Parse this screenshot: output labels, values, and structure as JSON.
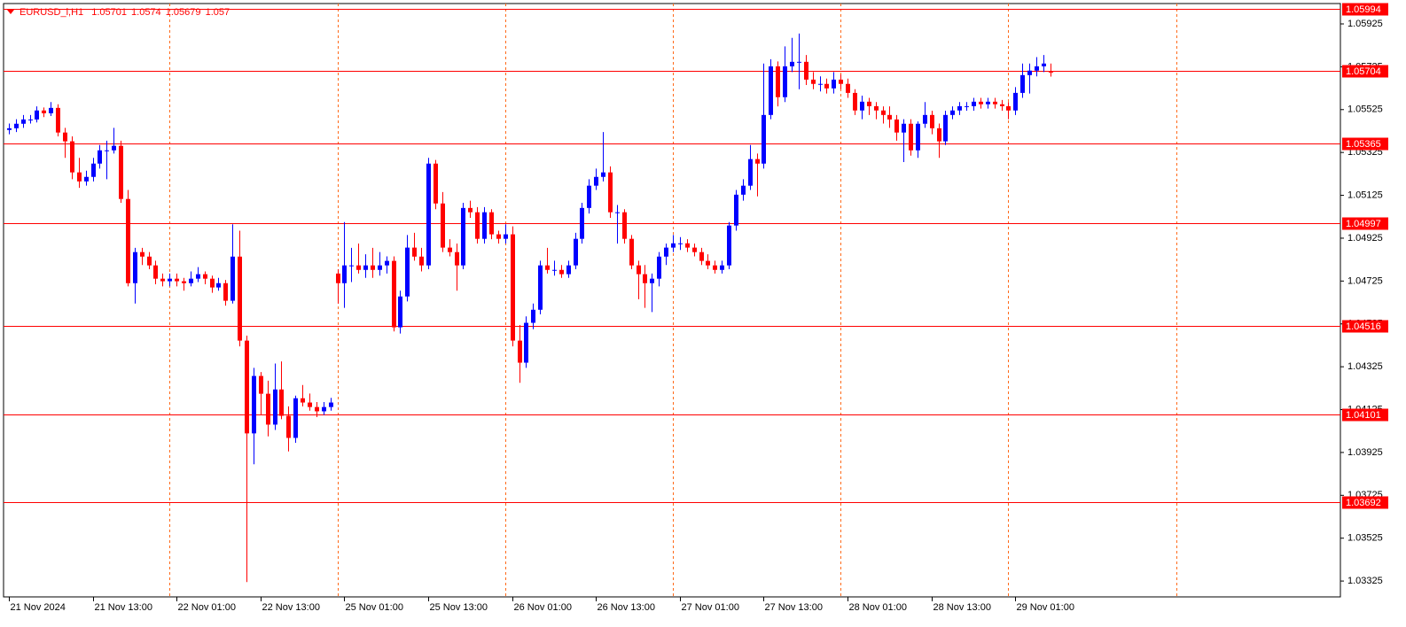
{
  "chart_data": {
    "type": "candlestick",
    "symbol": "EURUSD_i,H1",
    "up_color": "#0000ff",
    "down_color": "#ff0000",
    "level_color": "#ff0000",
    "ylim": [
      1.03251,
      1.0602
    ],
    "yticks": [
      1.05925,
      1.05725,
      1.05525,
      1.05325,
      1.05125,
      1.04925,
      1.04725,
      1.04525,
      1.04325,
      1.04125,
      1.03925,
      1.03725,
      1.03525,
      1.03325
    ],
    "levels": [
      1.05994,
      1.05704,
      1.05365,
      1.04997,
      1.04516,
      1.04101,
      1.03692
    ],
    "xlim": [
      -0.75,
      190.5
    ],
    "xticks": [
      {
        "value": 0,
        "label": "21 Nov 2024"
      },
      {
        "value": 12,
        "label": "21 Nov 13:00"
      },
      {
        "value": 24,
        "label": "22 Nov 01:00"
      },
      {
        "value": 36,
        "label": "22 Nov 13:00"
      },
      {
        "value": 48,
        "label": "25 Nov 01:00"
      },
      {
        "value": 60,
        "label": "25 Nov 13:00"
      },
      {
        "value": 72,
        "label": "26 Nov 01:00"
      },
      {
        "value": 84,
        "label": "26 Nov 13:00"
      },
      {
        "value": 96,
        "label": "27 Nov 01:00"
      },
      {
        "value": 108,
        "label": "27 Nov 13:00"
      },
      {
        "value": 120,
        "label": "28 Nov 01:00"
      },
      {
        "value": 132,
        "label": "28 Nov 13:00"
      },
      {
        "value": 144,
        "label": "29 Nov 01:00"
      }
    ],
    "xgrid": [
      23,
      47,
      71,
      95,
      119,
      143,
      167
    ],
    "candles": [
      [
        1.0543,
        1.0546,
        1.0541,
        1.05438
      ],
      [
        1.05438,
        1.0548,
        1.0542,
        1.05459
      ],
      [
        1.05459,
        1.055,
        1.0544,
        1.05479
      ],
      [
        1.05479,
        1.055,
        1.0546,
        1.05479
      ],
      [
        1.05479,
        1.0554,
        1.05465,
        1.05521
      ],
      [
        1.05521,
        1.05535,
        1.0549,
        1.05508
      ],
      [
        1.05508,
        1.0556,
        1.05495,
        1.05533
      ],
      [
        1.05533,
        1.0555,
        1.054,
        1.05418
      ],
      [
        1.05418,
        1.0544,
        1.053,
        1.05377
      ],
      [
        1.05377,
        1.054,
        1.052,
        1.05232
      ],
      [
        1.05232,
        1.053,
        1.0516,
        1.0519
      ],
      [
        1.0519,
        1.0524,
        1.0517,
        1.05211
      ],
      [
        1.05211,
        1.053,
        1.0519,
        1.05273
      ],
      [
        1.05273,
        1.0536,
        1.0525,
        1.05335
      ],
      [
        1.05335,
        1.0538,
        1.052,
        1.05335
      ],
      [
        1.05335,
        1.0544,
        1.0532,
        1.05356
      ],
      [
        1.05356,
        1.0538,
        1.0509,
        1.05108
      ],
      [
        1.05108,
        1.0515,
        1.047,
        1.04715
      ],
      [
        1.04715,
        1.0488,
        1.0462,
        1.0486
      ],
      [
        1.0486,
        1.0488,
        1.048,
        1.04839
      ],
      [
        1.04839,
        1.0486,
        1.0478,
        1.04798
      ],
      [
        1.04798,
        1.0482,
        1.0471,
        1.04736
      ],
      [
        1.04736,
        1.0476,
        1.047,
        1.04724
      ],
      [
        1.04724,
        1.0476,
        1.047,
        1.04736
      ],
      [
        1.04736,
        1.0476,
        1.047,
        1.04724
      ],
      [
        1.04724,
        1.0474,
        1.0468,
        1.04715
      ],
      [
        1.04715,
        1.0477,
        1.047,
        1.04736
      ],
      [
        1.04736,
        1.0479,
        1.0472,
        1.04757
      ],
      [
        1.04757,
        1.0477,
        1.0471,
        1.04736
      ],
      [
        1.04736,
        1.0475,
        1.0467,
        1.04695
      ],
      [
        1.04695,
        1.0474,
        1.0468,
        1.04715
      ],
      [
        1.04715,
        1.0473,
        1.0461,
        1.04633
      ],
      [
        1.04633,
        1.0499,
        1.0462,
        1.04839
      ],
      [
        1.04839,
        1.0496,
        1.0442,
        1.04447
      ],
      [
        1.04447,
        1.0447,
        1.0332,
        1.04014
      ],
      [
        1.04014,
        1.0432,
        1.0387,
        1.04282
      ],
      [
        1.04282,
        1.043,
        1.041,
        1.04199
      ],
      [
        1.04199,
        1.0426,
        1.04,
        1.04055
      ],
      [
        1.04055,
        1.0434,
        1.0403,
        1.04219
      ],
      [
        1.04219,
        1.0435,
        1.0408,
        1.04096
      ],
      [
        1.04096,
        1.0414,
        1.0393,
        1.03993
      ],
      [
        1.03993,
        1.0419,
        1.0397,
        1.04178
      ],
      [
        1.04178,
        1.0424,
        1.0414,
        1.04158
      ],
      [
        1.04158,
        1.042,
        1.0412,
        1.04137
      ],
      [
        1.04137,
        1.0416,
        1.0409,
        1.04117
      ],
      [
        1.04117,
        1.0416,
        1.041,
        1.04137
      ],
      [
        1.04137,
        1.0418,
        1.0412,
        1.04158
      ],
      [
        1.0476,
        1.0478,
        1.0462,
        1.04715
      ],
      [
        1.04715,
        1.05,
        1.046,
        1.04798
      ],
      [
        1.04798,
        1.0488,
        1.0472,
        1.04798
      ],
      [
        1.04798,
        1.049,
        1.0476,
        1.04777
      ],
      [
        1.04777,
        1.0485,
        1.0474,
        1.04798
      ],
      [
        1.04798,
        1.0488,
        1.0474,
        1.04777
      ],
      [
        1.04777,
        1.0486,
        1.0475,
        1.04798
      ],
      [
        1.04798,
        1.0484,
        1.0476,
        1.04819
      ],
      [
        1.04819,
        1.0484,
        1.0449,
        1.04509
      ],
      [
        1.04509,
        1.0468,
        1.0448,
        1.04653
      ],
      [
        1.04653,
        1.0494,
        1.0463,
        1.04881
      ],
      [
        1.04881,
        1.0495,
        1.0482,
        1.04839
      ],
      [
        1.04839,
        1.0488,
        1.0477,
        1.04798
      ],
      [
        1.04798,
        1.053,
        1.0478,
        1.05273
      ],
      [
        1.05273,
        1.0529,
        1.0506,
        1.05087
      ],
      [
        1.05087,
        1.0514,
        1.0486,
        1.04881
      ],
      [
        1.04881,
        1.0492,
        1.0484,
        1.0486
      ],
      [
        1.0486,
        1.049,
        1.0468,
        1.04798
      ],
      [
        1.04798,
        1.0509,
        1.0478,
        1.05066
      ],
      [
        1.05066,
        1.051,
        1.0502,
        1.05046
      ],
      [
        1.05046,
        1.0507,
        1.049,
        1.04922
      ],
      [
        1.04922,
        1.0507,
        1.049,
        1.05046
      ],
      [
        1.05046,
        1.0506,
        1.0492,
        1.04943
      ],
      [
        1.04943,
        1.0496,
        1.049,
        1.04922
      ],
      [
        1.04922,
        1.0499,
        1.049,
        1.04943
      ],
      [
        1.04943,
        1.0498,
        1.0442,
        1.04447
      ],
      [
        1.04447,
        1.0452,
        1.0425,
        1.04344
      ],
      [
        1.04344,
        1.0456,
        1.0432,
        1.0453
      ],
      [
        1.0453,
        1.0462,
        1.045,
        1.04591
      ],
      [
        1.04591,
        1.0482,
        1.0457,
        1.04798
      ],
      [
        1.04798,
        1.0488,
        1.0476,
        1.04777
      ],
      [
        1.04777,
        1.0482,
        1.0475,
        1.04777
      ],
      [
        1.04777,
        1.048,
        1.0474,
        1.04757
      ],
      [
        1.04757,
        1.0482,
        1.0474,
        1.04798
      ],
      [
        1.04798,
        1.0495,
        1.0478,
        1.04922
      ],
      [
        1.04922,
        1.0509,
        1.049,
        1.05066
      ],
      [
        1.05066,
        1.052,
        1.0504,
        1.0517
      ],
      [
        1.0517,
        1.0525,
        1.0515,
        1.05211
      ],
      [
        1.05211,
        1.0542,
        1.0519,
        1.05232
      ],
      [
        1.05232,
        1.0526,
        1.0502,
        1.05046
      ],
      [
        1.05046,
        1.0508,
        1.049,
        1.05046
      ],
      [
        1.05046,
        1.0506,
        1.049,
        1.04922
      ],
      [
        1.04922,
        1.0494,
        1.0478,
        1.04798
      ],
      [
        1.04798,
        1.0482,
        1.0464,
        1.04757
      ],
      [
        1.04757,
        1.048,
        1.046,
        1.04715
      ],
      [
        1.04715,
        1.0476,
        1.0458,
        1.04736
      ],
      [
        1.04736,
        1.0486,
        1.047,
        1.04839
      ],
      [
        1.04839,
        1.049,
        1.048,
        1.04881
      ],
      [
        1.04881,
        1.0494,
        1.0486,
        1.04901
      ],
      [
        1.04901,
        1.0493,
        1.0487,
        1.04901
      ],
      [
        1.04901,
        1.0492,
        1.0486,
        1.04881
      ],
      [
        1.04881,
        1.049,
        1.0484,
        1.0486
      ],
      [
        1.0486,
        1.0488,
        1.048,
        1.04819
      ],
      [
        1.04819,
        1.0485,
        1.0478,
        1.04798
      ],
      [
        1.04798,
        1.0482,
        1.0476,
        1.04777
      ],
      [
        1.04777,
        1.0482,
        1.0476,
        1.04798
      ],
      [
        1.04798,
        1.05,
        1.0478,
        1.04984
      ],
      [
        1.04984,
        1.0515,
        1.0496,
        1.05128
      ],
      [
        1.05128,
        1.052,
        1.051,
        1.0517
      ],
      [
        1.0517,
        1.0536,
        1.0515,
        1.05294
      ],
      [
        1.05294,
        1.0532,
        1.0512,
        1.05273
      ],
      [
        1.05273,
        1.0574,
        1.0525,
        1.055
      ],
      [
        1.055,
        1.0576,
        1.0548,
        1.05727
      ],
      [
        1.05727,
        1.0575,
        1.0554,
        1.05583
      ],
      [
        1.05583,
        1.0582,
        1.0556,
        1.05727
      ],
      [
        1.05727,
        1.0586,
        1.057,
        1.05748
      ],
      [
        1.05748,
        1.0588,
        1.0562,
        1.05748
      ],
      [
        1.05748,
        1.0578,
        1.0564,
        1.05665
      ],
      [
        1.05665,
        1.057,
        1.0562,
        1.05645
      ],
      [
        1.05645,
        1.0568,
        1.0561,
        1.05645
      ],
      [
        1.05645,
        1.0567,
        1.056,
        1.05624
      ],
      [
        1.05624,
        1.057,
        1.056,
        1.05665
      ],
      [
        1.05665,
        1.0569,
        1.0562,
        1.05645
      ],
      [
        1.05645,
        1.0567,
        1.0558,
        1.05603
      ],
      [
        1.05603,
        1.0562,
        1.055,
        1.05521
      ],
      [
        1.05521,
        1.0559,
        1.0548,
        1.05562
      ],
      [
        1.05562,
        1.0558,
        1.055,
        1.05541
      ],
      [
        1.05541,
        1.0556,
        1.0548,
        1.05521
      ],
      [
        1.05521,
        1.0554,
        1.0546,
        1.055
      ],
      [
        1.055,
        1.0554,
        1.0544,
        1.05479
      ],
      [
        1.05479,
        1.055,
        1.0538,
        1.05418
      ],
      [
        1.05418,
        1.0548,
        1.0528,
        1.05459
      ],
      [
        1.05459,
        1.0548,
        1.0531,
        1.05335
      ],
      [
        1.05335,
        1.0547,
        1.053,
        1.05459
      ],
      [
        1.05459,
        1.0556,
        1.0544,
        1.055
      ],
      [
        1.055,
        1.0552,
        1.0541,
        1.05438
      ],
      [
        1.05438,
        1.0546,
        1.053,
        1.05377
      ],
      [
        1.05377,
        1.0552,
        1.0536,
        1.055
      ],
      [
        1.055,
        1.0554,
        1.0548,
        1.05521
      ],
      [
        1.05521,
        1.0556,
        1.055,
        1.05541
      ],
      [
        1.05541,
        1.0556,
        1.0552,
        1.05541
      ],
      [
        1.05541,
        1.0558,
        1.0552,
        1.05562
      ],
      [
        1.05562,
        1.0558,
        1.0553,
        1.0555
      ],
      [
        1.0555,
        1.0558,
        1.0553,
        1.05562
      ],
      [
        1.05562,
        1.0558,
        1.0553,
        1.0555
      ],
      [
        1.0555,
        1.0557,
        1.0552,
        1.05541
      ],
      [
        1.05541,
        1.0556,
        1.0548,
        1.05521
      ],
      [
        1.05521,
        1.0563,
        1.055,
        1.05603
      ],
      [
        1.05603,
        1.0574,
        1.0558,
        1.05686
      ],
      [
        1.05686,
        1.0574,
        1.056,
        1.05707
      ],
      [
        1.05707,
        1.0577,
        1.0568,
        1.05727
      ],
      [
        1.05727,
        1.0578,
        1.057,
        1.0574
      ],
      [
        1.05701,
        1.0574,
        1.05679,
        1.057
      ]
    ]
  }
}
